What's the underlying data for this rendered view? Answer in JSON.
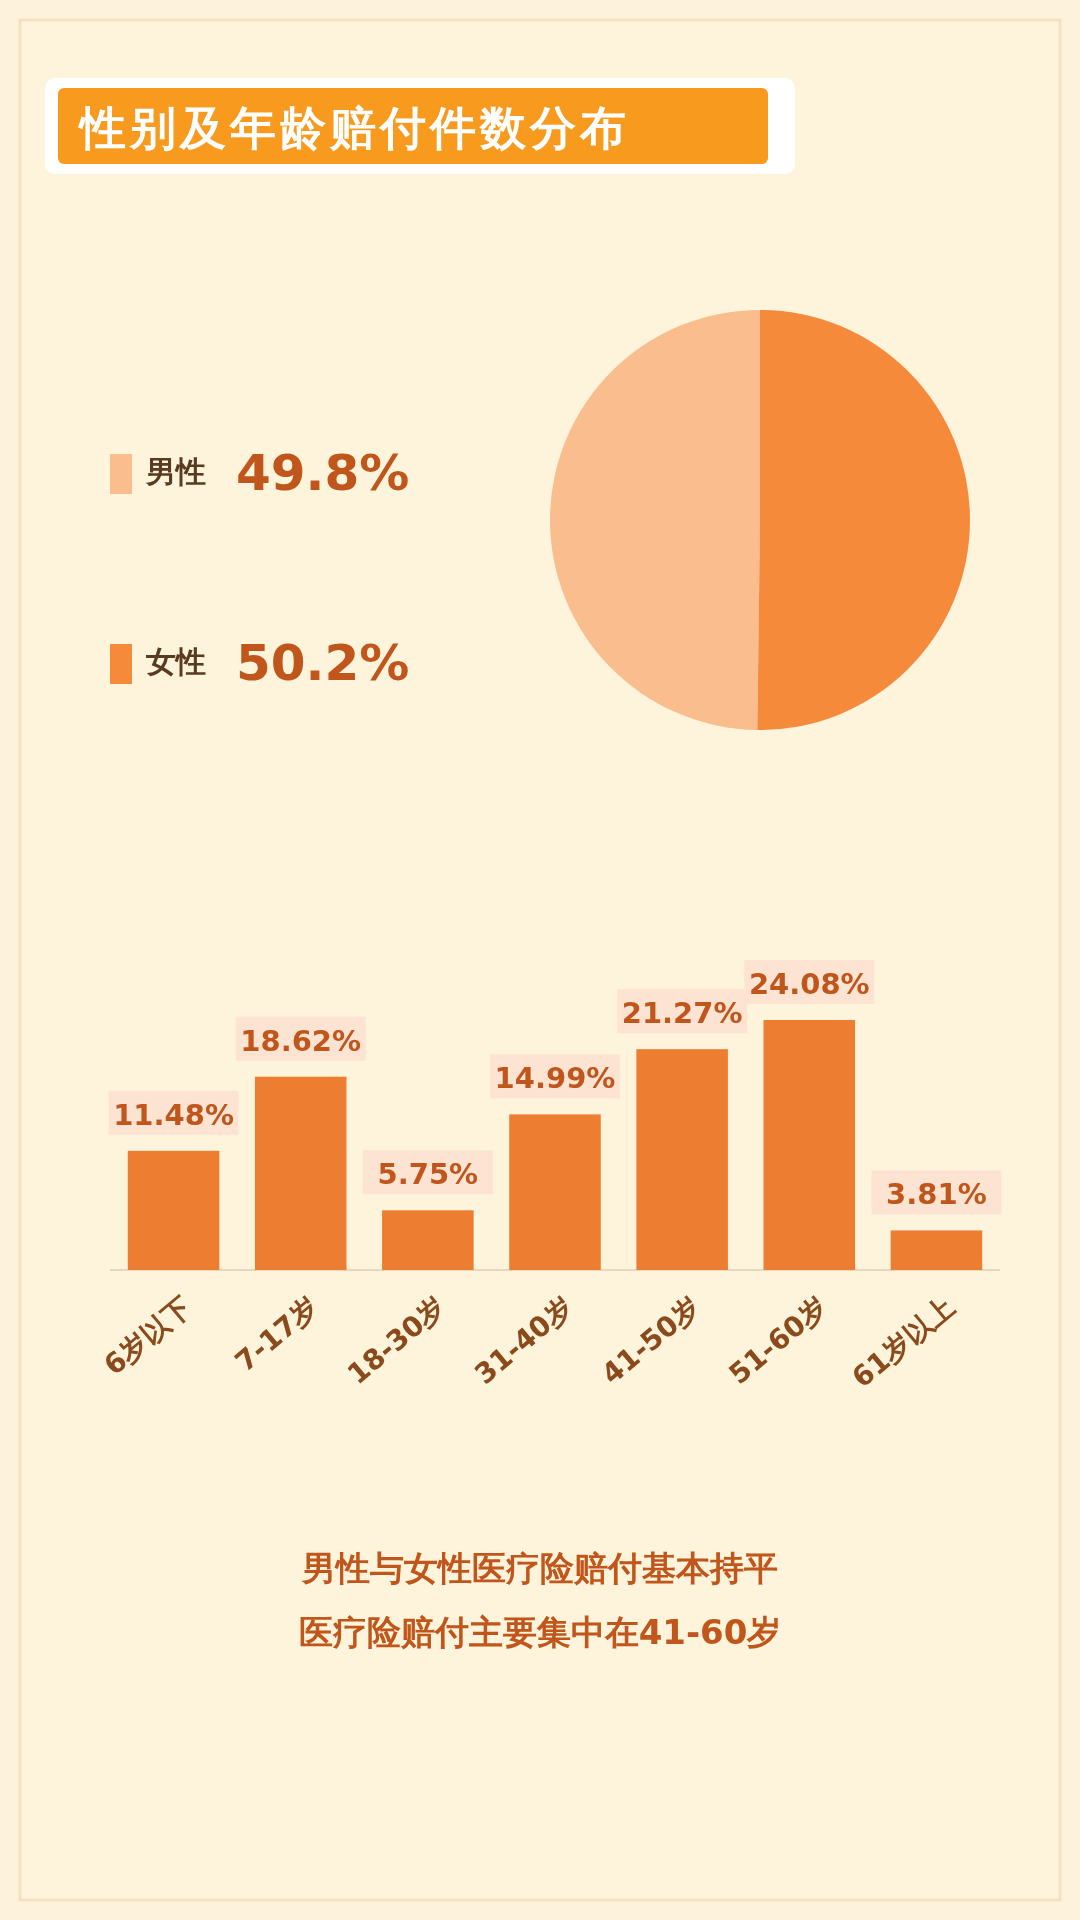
{
  "chart_data": [
    {
      "type": "pie",
      "title": "性别及年龄赔付件数分布",
      "categories": [
        "男性",
        "女性"
      ],
      "values": [
        49.8,
        50.2
      ],
      "colors": [
        "#f9bd8e",
        "#f58a3a"
      ],
      "value_labels": [
        "49.8%",
        "50.2%"
      ],
      "legend": "left"
    },
    {
      "type": "bar",
      "categories": [
        "6岁以下",
        "7-17岁",
        "18-30岁",
        "31-40岁",
        "41-50岁",
        "51-60岁",
        "61岁以上"
      ],
      "values": [
        11.48,
        18.62,
        5.75,
        14.99,
        21.27,
        24.08,
        3.81
      ],
      "color": "#ed7d31",
      "value_labels": [
        "11.48%",
        "18.62%",
        "5.75%",
        "14.99%",
        "21.27%",
        "24.08%",
        "3.81%"
      ],
      "annotations": [
        "男性与女性医疗险赔付基本持平",
        "医疗险赔付主要集中在41-60岁"
      ]
    }
  ]
}
